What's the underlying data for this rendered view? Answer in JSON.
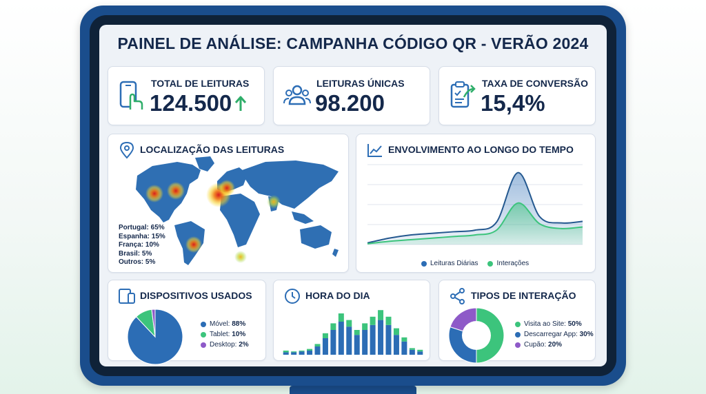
{
  "title": "PAINEL DE ANÁLISE: CAMPANHA CÓDIGO QR - VERÃO 2024",
  "kpis": [
    {
      "label": "TOTAL DE LEITURAS",
      "value": "124.500",
      "icon": "phone-tap-icon",
      "trend": "up-arrow-icon"
    },
    {
      "label": "LEITURAS ÚNICAS",
      "value": "98.200",
      "icon": "users-icon"
    },
    {
      "label": "TAXA DE CONVERSÃO",
      "value": "15,4%",
      "icon": "clipboard-check-icon"
    }
  ],
  "location": {
    "title": "LOCALIZAÇÃO DAS LEITURAS",
    "icon": "map-pin-icon",
    "items": [
      "Portugal: 65%",
      "Espanha: 15%",
      "França: 10%",
      "Brasil: 5%",
      "Outros: 5%"
    ]
  },
  "engagement": {
    "title": "ENVOLVIMENTO AO LONGO DO TEMPO",
    "icon": "trend-line-icon"
  },
  "devices": {
    "title": "DISPOSITIVOS USADOS",
    "icon": "devices-icon"
  },
  "hours": {
    "title": "HORA DO DIA",
    "icon": "clock-icon"
  },
  "interactions": {
    "title": "TIPOS DE INTERAÇÃO",
    "icon": "share-icon"
  },
  "colors": {
    "primary": "#2c6db5",
    "green": "#3cc47c",
    "purple": "#8e5ac8",
    "navy": "#14284b",
    "accent_green": "#2fae6a"
  },
  "chart_data": [
    {
      "type": "area",
      "series": [
        {
          "name": "Leituras Diárias",
          "values": [
            2,
            8,
            12,
            14,
            16,
            18,
            28,
            90,
            35,
            27,
            29
          ]
        },
        {
          "name": "Interações",
          "values": [
            1,
            4,
            6,
            8,
            10,
            12,
            18,
            52,
            26,
            20,
            22
          ]
        }
      ],
      "x": [
        1,
        2,
        3,
        4,
        5,
        6,
        7,
        8,
        9,
        10,
        11
      ],
      "ylim": [
        0,
        100
      ],
      "grid": true,
      "legend": "bottom"
    },
    {
      "type": "pie",
      "labels": [
        "Móvel",
        "Tablet",
        "Desktop"
      ],
      "label_text": [
        "Móvel:",
        "Tablet:",
        "Desktop:"
      ],
      "values": [
        88,
        10,
        2
      ],
      "value_text": [
        "88%",
        "10%",
        "2%"
      ],
      "legend": "right"
    },
    {
      "type": "bar",
      "stacked": true,
      "categories": [
        "0",
        "1",
        "2",
        "3",
        "4",
        "5",
        "6",
        "7",
        "8",
        "9",
        "10",
        "11",
        "12",
        "13",
        "14",
        "15",
        "16",
        "17"
      ],
      "series": [
        {
          "values": [
            3,
            3,
            4,
            5,
            10,
            20,
            30,
            40,
            34,
            24,
            30,
            36,
            42,
            36,
            24,
            16,
            6,
            4
          ]
        },
        {
          "values": [
            2,
            1,
            1,
            2,
            3,
            6,
            8,
            10,
            8,
            6,
            8,
            10,
            12,
            10,
            8,
            5,
            2,
            2
          ]
        }
      ],
      "ylim": [
        0,
        60
      ]
    },
    {
      "type": "pie",
      "donut": true,
      "labels": [
        "Visita ao Site",
        "Descarregar App",
        "Cupão"
      ],
      "label_text": [
        "Visita ao Site:",
        "Descarregar App:",
        "Cupão:"
      ],
      "values": [
        50,
        30,
        20
      ],
      "value_text": [
        "50%",
        "30%",
        "20%"
      ],
      "legend": "right"
    }
  ]
}
